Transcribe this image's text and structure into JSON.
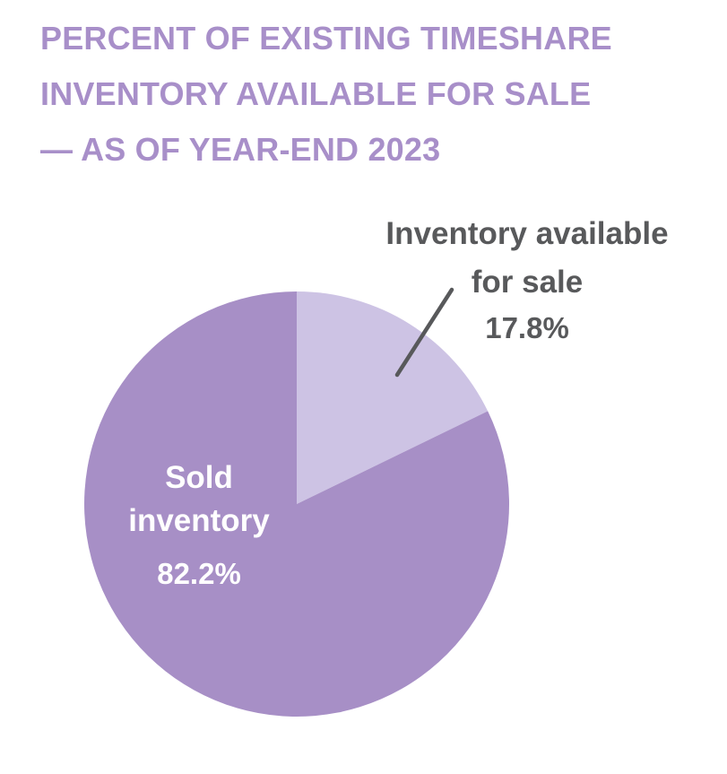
{
  "title": {
    "lines": [
      "PERCENT OF EXISTING TIMESHARE",
      "INVENTORY AVAILABLE FOR SALE",
      "— AS OF YEAR-END 2023"
    ],
    "color": "#a88fc9"
  },
  "chart_data": {
    "type": "pie",
    "title": "PERCENT OF EXISTING TIMESHARE INVENTORY AVAILABLE FOR SALE — AS OF YEAR-END 2023",
    "categories": [
      "Inventory available for sale",
      "Sold inventory"
    ],
    "values": [
      17.8,
      82.2
    ],
    "unit": "%",
    "slices": [
      {
        "id": "available",
        "label": "Inventory available for sale",
        "pct": 17.8,
        "display": "17.8%",
        "color": "#cdc3e4"
      },
      {
        "id": "sold",
        "label": "Sold inventory",
        "pct": 82.2,
        "display": "82.2%",
        "color": "#a78fc6"
      }
    ],
    "start_position": "12-oclock",
    "start_angle_deg": 0,
    "direction": "clockwise",
    "legend_position": "none",
    "labels_on_chart": true
  },
  "labels": {
    "available_line1": "Inventory available",
    "available_line2": "for sale",
    "available_value": "17.8%",
    "sold_name": "Sold inventory",
    "sold_value": "82.2%"
  },
  "colors": {
    "background": "#ffffff",
    "title": "#a88fc9",
    "slice_dark": "#a78fc6",
    "slice_light": "#cdc3e4",
    "callout_text": "#58595b",
    "leader_line": "#58595b",
    "pie_label_text": "#ffffff"
  }
}
